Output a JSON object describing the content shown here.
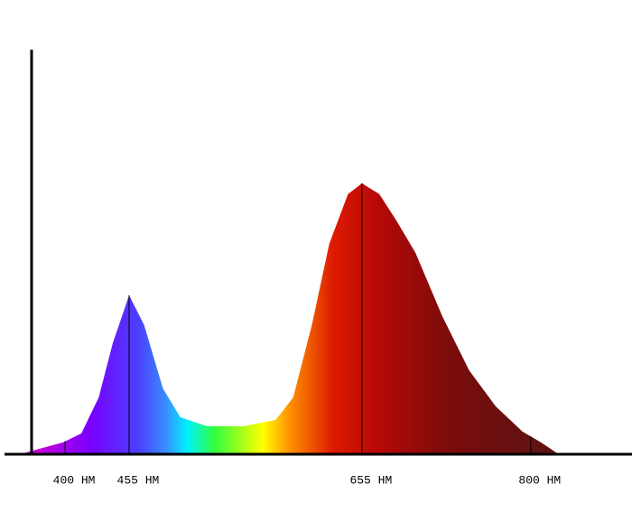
{
  "chart_data": {
    "type": "area",
    "x": [
      361,
      375,
      398,
      414,
      429,
      441,
      455,
      468,
      484,
      499,
      522,
      553,
      581,
      596,
      612,
      627,
      643,
      655,
      670,
      685,
      701,
      724,
      747,
      770,
      793,
      809,
      824
    ],
    "values": [
      0,
      2.5,
      6.5,
      11.5,
      31.5,
      61.5,
      88,
      71.5,
      36.5,
      20.5,
      15.5,
      15.5,
      19,
      31.5,
      71.5,
      116.5,
      144,
      150,
      144,
      129,
      111.5,
      76.5,
      46.5,
      26.5,
      12.5,
      6.5,
      0
    ],
    "xlim": [
      348,
      887
    ],
    "ylim": [
      0,
      224
    ],
    "xticks": [
      {
        "value": 400,
        "label": "400 HM"
      },
      {
        "value": 455,
        "label": "455 HM"
      },
      {
        "value": 655,
        "label": "655 HM"
      },
      {
        "value": 800,
        "label": "800 HM"
      }
    ]
  }
}
